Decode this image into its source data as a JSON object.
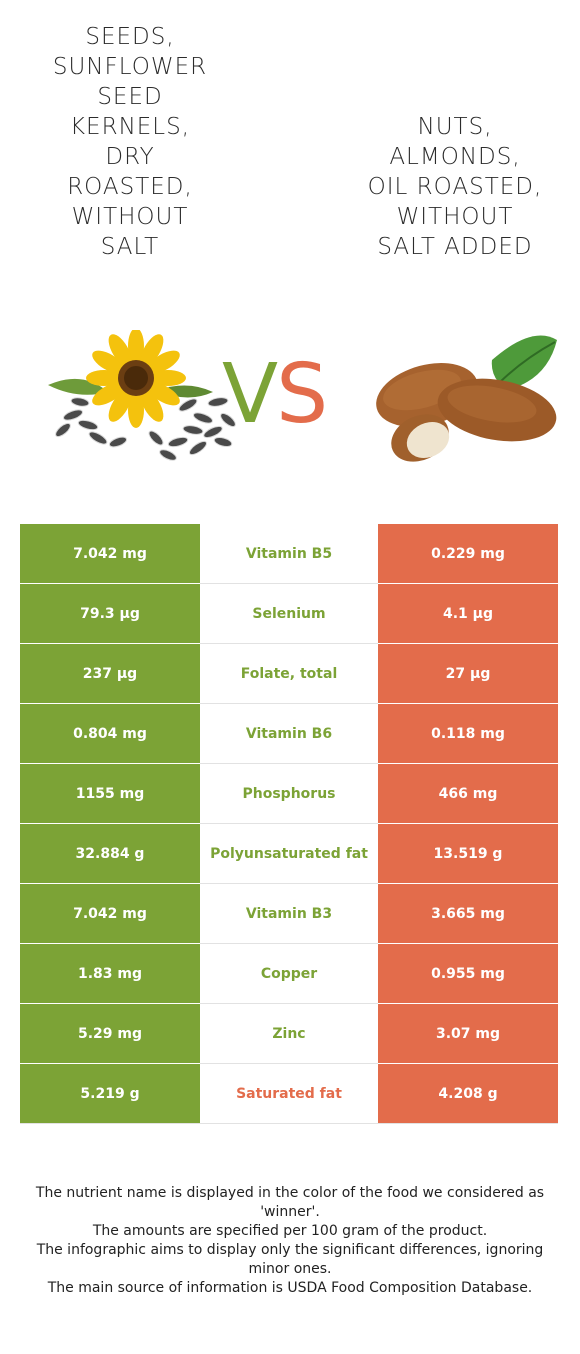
{
  "food_left": {
    "name": "Seeds,\nsunflower\nseed\nkernels,\ndry\nroasted,\nwithout\nsalt",
    "image": "sunflower-seeds-illustration",
    "color": "#7ca336"
  },
  "food_right": {
    "name": "Nuts,\nalmonds,\noil roasted,\nwithout\nsalt added",
    "image": "almonds-illustration",
    "color": "#e36c4b"
  },
  "vs": {
    "v": "V",
    "s": "S"
  },
  "nutrients": [
    {
      "left": "7.042 mg",
      "name": "Vitamin B5",
      "right": "0.229 mg",
      "winner": "left"
    },
    {
      "left": "79.3 µg",
      "name": "Selenium",
      "right": "4.1 µg",
      "winner": "left"
    },
    {
      "left": "237 µg",
      "name": "Folate, total",
      "right": "27 µg",
      "winner": "left"
    },
    {
      "left": "0.804 mg",
      "name": "Vitamin B6",
      "right": "0.118 mg",
      "winner": "left"
    },
    {
      "left": "1155 mg",
      "name": "Phosphorus",
      "right": "466 mg",
      "winner": "left"
    },
    {
      "left": "32.884 g",
      "name": "Polyunsaturated fat",
      "right": "13.519 g",
      "winner": "left"
    },
    {
      "left": "7.042 mg",
      "name": "Vitamin B3",
      "right": "3.665 mg",
      "winner": "left"
    },
    {
      "left": "1.83 mg",
      "name": "Copper",
      "right": "0.955 mg",
      "winner": "left"
    },
    {
      "left": "5.29 mg",
      "name": "Zinc",
      "right": "3.07 mg",
      "winner": "left"
    },
    {
      "left": "5.219 g",
      "name": "Saturated fat",
      "right": "4.208 g",
      "winner": "right"
    }
  ],
  "footer": {
    "line1": "The nutrient name is displayed in the color of the food we considered as 'winner'.",
    "line2": "The amounts are specified per 100 gram of the product.",
    "line3": "The infographic aims to display only the significant differences, ignoring minor ones.",
    "line4": "The main source of information is USDA Food Composition Database."
  }
}
